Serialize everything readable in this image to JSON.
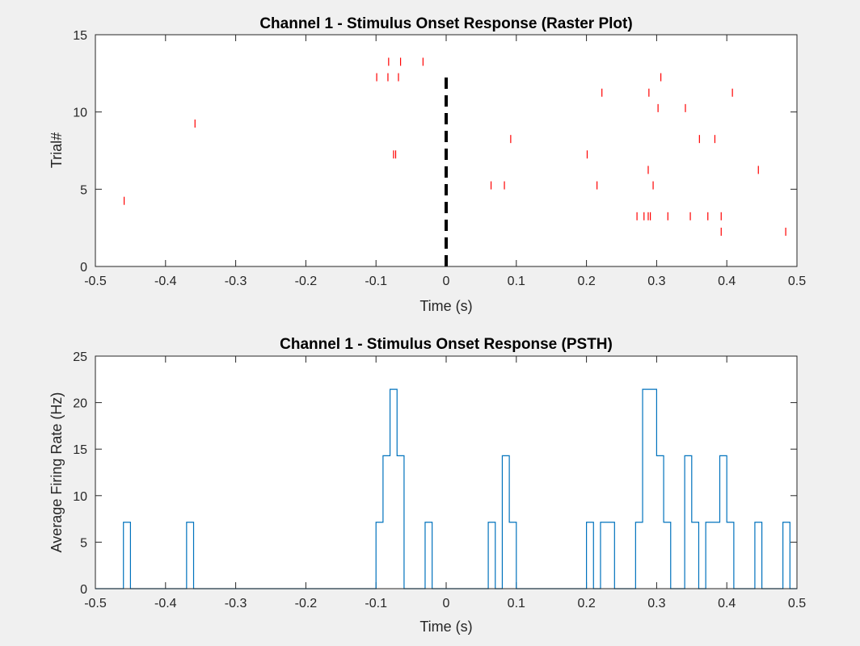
{
  "chart_data": [
    {
      "type": "scatter",
      "title": "Channel 1 - Stimulus Onset Response (Raster Plot)",
      "xlabel": "Time (s)",
      "ylabel": "Trial#",
      "xlim": [
        -0.5,
        0.5
      ],
      "ylim": [
        0,
        15
      ],
      "xticks": [
        -0.5,
        -0.4,
        -0.3,
        -0.2,
        -0.1,
        0,
        0.1,
        0.2,
        0.3,
        0.4,
        0.5
      ],
      "xtick_labels": [
        "-0.5",
        "-0.4",
        "-0.3",
        "-0.2",
        "-0.1",
        "0",
        "0.1",
        "0.2",
        "0.3",
        "0.4",
        "0.5"
      ],
      "yticks": [
        0,
        5,
        10,
        15
      ],
      "ytick_labels": [
        "0",
        "5",
        "10",
        "15"
      ],
      "grid": false,
      "marker": "spike tick",
      "spike_color": "#ff0000",
      "onset_line": {
        "x": 0,
        "y_range": [
          0,
          12.5
        ],
        "style": "dashed",
        "color": "#000000"
      },
      "spikes": [
        {
          "x": -0.459,
          "trial": 4
        },
        {
          "x": -0.358,
          "trial": 9
        },
        {
          "x": -0.099,
          "trial": 12
        },
        {
          "x": -0.083,
          "trial": 12
        },
        {
          "x": -0.068,
          "trial": 12
        },
        {
          "x": -0.082,
          "trial": 13
        },
        {
          "x": -0.065,
          "trial": 13
        },
        {
          "x": -0.033,
          "trial": 13
        },
        {
          "x": -0.075,
          "trial": 7
        },
        {
          "x": -0.072,
          "trial": 7
        },
        {
          "x": 0.064,
          "trial": 5
        },
        {
          "x": 0.083,
          "trial": 5
        },
        {
          "x": 0.092,
          "trial": 8
        },
        {
          "x": 0.201,
          "trial": 7
        },
        {
          "x": 0.215,
          "trial": 5
        },
        {
          "x": 0.222,
          "trial": 11
        },
        {
          "x": 0.272,
          "trial": 3
        },
        {
          "x": 0.282,
          "trial": 3
        },
        {
          "x": 0.288,
          "trial": 3
        },
        {
          "x": 0.291,
          "trial": 3
        },
        {
          "x": 0.289,
          "trial": 11
        },
        {
          "x": 0.288,
          "trial": 6
        },
        {
          "x": 0.295,
          "trial": 5
        },
        {
          "x": 0.302,
          "trial": 10
        },
        {
          "x": 0.306,
          "trial": 12
        },
        {
          "x": 0.316,
          "trial": 3
        },
        {
          "x": 0.341,
          "trial": 10
        },
        {
          "x": 0.348,
          "trial": 3
        },
        {
          "x": 0.361,
          "trial": 8
        },
        {
          "x": 0.373,
          "trial": 3
        },
        {
          "x": 0.383,
          "trial": 8
        },
        {
          "x": 0.392,
          "trial": 3
        },
        {
          "x": 0.392,
          "trial": 2
        },
        {
          "x": 0.408,
          "trial": 11
        },
        {
          "x": 0.445,
          "trial": 6
        },
        {
          "x": 0.484,
          "trial": 2
        }
      ]
    },
    {
      "type": "line",
      "style": "stairs",
      "title": "Channel 1 - Stimulus Onset Response (PSTH)",
      "xlabel": "Time (s)",
      "ylabel": "Average Firing Rate (Hz)",
      "xlim": [
        -0.5,
        0.5
      ],
      "ylim": [
        0,
        25
      ],
      "xticks": [
        -0.5,
        -0.4,
        -0.3,
        -0.2,
        -0.1,
        0,
        0.1,
        0.2,
        0.3,
        0.4,
        0.5
      ],
      "xtick_labels": [
        "-0.5",
        "-0.4",
        "-0.3",
        "-0.2",
        "-0.1",
        "0",
        "0.1",
        "0.2",
        "0.3",
        "0.4",
        "0.5"
      ],
      "yticks": [
        0,
        5,
        10,
        15,
        20,
        25
      ],
      "ytick_labels": [
        "0",
        "5",
        "10",
        "15",
        "20",
        "25"
      ],
      "grid": false,
      "line_color": "#0072bd",
      "bin_width": 0.01,
      "bin_edges_start": -0.5,
      "values": [
        0,
        0,
        0,
        0,
        7.14,
        0,
        0,
        0,
        0,
        0,
        0,
        0,
        0,
        7.14,
        0,
        0,
        0,
        0,
        0,
        0,
        0,
        0,
        0,
        0,
        0,
        0,
        0,
        0,
        0,
        0,
        0,
        0,
        0,
        0,
        0,
        0,
        0,
        0,
        0,
        0,
        7.14,
        14.29,
        21.43,
        14.29,
        0,
        0,
        0,
        7.14,
        0,
        0,
        0,
        0,
        0,
        0,
        0,
        0,
        7.14,
        0,
        14.29,
        7.14,
        0,
        0,
        0,
        0,
        0,
        0,
        0,
        0,
        0,
        0,
        7.14,
        0,
        7.14,
        7.14,
        0,
        0,
        0,
        7.14,
        21.43,
        21.43,
        14.29,
        7.14,
        0,
        0,
        14.29,
        7.14,
        0,
        7.14,
        7.14,
        14.29,
        7.14,
        0,
        0,
        0,
        7.14,
        0,
        0,
        0,
        7.14,
        0
      ]
    }
  ]
}
